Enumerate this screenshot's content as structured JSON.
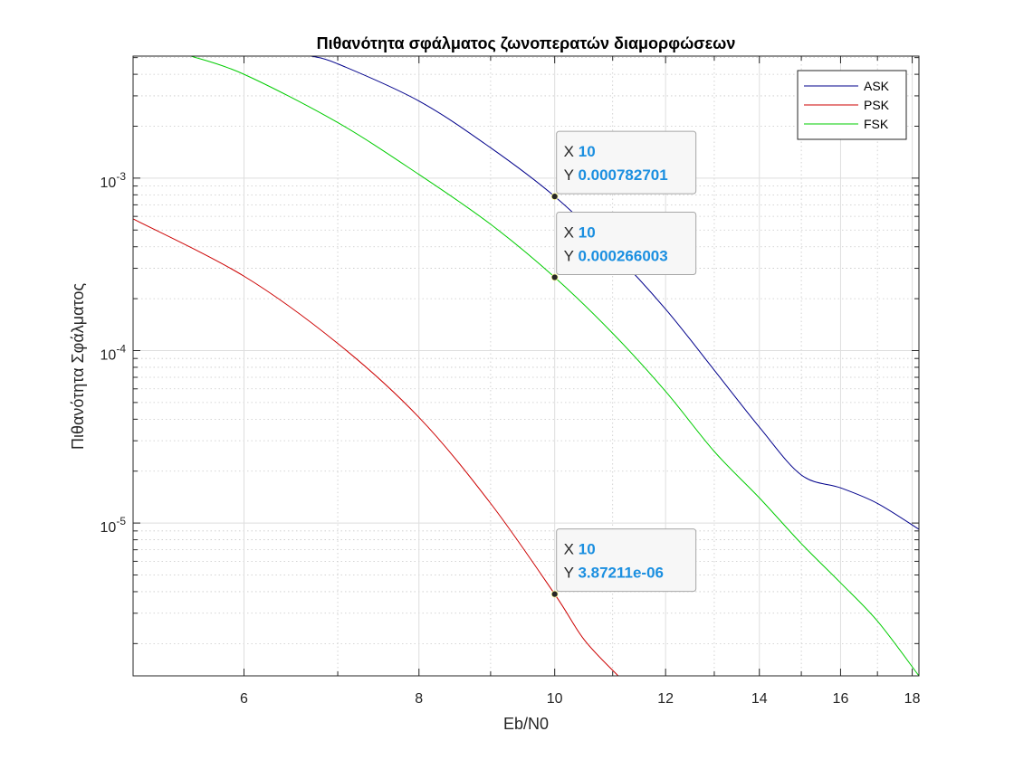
{
  "chart_data": {
    "type": "line",
    "title": "Πιθανότητα σφάλματος ζωνοπερατών διαμορφώσεων",
    "xlabel": "Eb/N0",
    "ylabel": "Πιθανότητα Σφάλματος",
    "xscale": "log",
    "yscale": "log",
    "xlim": [
      5.0,
      18.2
    ],
    "ylim": [
      1.3e-06,
      0.0051
    ],
    "grid": true,
    "legend_position": "top-right",
    "xticks": [
      6,
      8,
      10,
      12,
      14,
      16,
      18
    ],
    "xtick_labels": [
      "6",
      "8",
      "10",
      "12",
      "14",
      "16",
      "18"
    ],
    "yticks": [
      1e-05,
      0.0001,
      0.001
    ],
    "ytick_labels": [
      {
        "base": "10",
        "exp": "-5"
      },
      {
        "base": "10",
        "exp": "-4"
      },
      {
        "base": "10",
        "exp": "-3"
      }
    ],
    "series": [
      {
        "name": "ASK",
        "color": "#00008b",
        "x": [
          6.7,
          7.0,
          8.0,
          9.0,
          10.0,
          11.0,
          12.0,
          13.0,
          14.0,
          15.0,
          16.0,
          17.0,
          18.2
        ],
        "y": [
          0.0051,
          0.0046,
          0.0028,
          0.0015,
          0.000783,
          0.000376,
          0.000174,
          7.7e-05,
          3.6e-05,
          1.9e-05,
          1.6e-05,
          1.3e-05,
          9.2e-06
        ]
      },
      {
        "name": "PSK",
        "color": "#cc0000",
        "x": [
          5.0,
          6.0,
          7.0,
          8.0,
          9.0,
          10.0,
          10.5,
          11.1
        ],
        "y": [
          0.00058,
          0.00027,
          0.00011,
          4.1e-05,
          1.3e-05,
          3.87e-06,
          2.1e-06,
          1.3e-06
        ]
      },
      {
        "name": "FSK",
        "color": "#00cc00",
        "x": [
          5.5,
          6.0,
          7.0,
          8.0,
          9.0,
          10.0,
          11.0,
          12.0,
          13.0,
          14.0,
          15.0,
          16.0,
          17.0,
          18.2
        ],
        "y": [
          0.0051,
          0.004,
          0.0021,
          0.00105,
          0.00054,
          0.000266,
          0.000126,
          5.8e-05,
          2.6e-05,
          1.4e-05,
          7.6e-06,
          4.5e-06,
          2.7e-06,
          1.3e-06
        ]
      }
    ],
    "datatips": [
      {
        "series": "ASK",
        "x_label": "X",
        "x_value": "10",
        "y_label": "Y",
        "y_value": "0.000782701",
        "x": 10,
        "y": 0.000782701
      },
      {
        "series": "FSK",
        "x_label": "X",
        "x_value": "10",
        "y_label": "Y",
        "y_value": "0.000266003",
        "x": 10,
        "y": 0.000266003
      },
      {
        "series": "PSK",
        "x_label": "X",
        "x_value": "10",
        "y_label": "Y",
        "y_value": "3.87211e-06",
        "x": 10,
        "y": 3.87211e-06
      }
    ]
  }
}
